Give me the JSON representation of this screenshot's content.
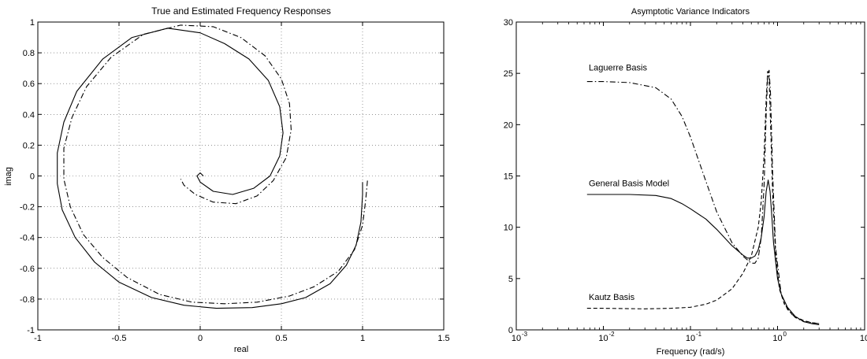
{
  "chart_data": [
    {
      "type": "line",
      "title": "True and Estimated Frequency Responses",
      "xlabel": "real",
      "ylabel": "imag",
      "xlim": [
        -1,
        1.5
      ],
      "ylim": [
        -1,
        1
      ],
      "xticks": [
        -1,
        -0.5,
        0,
        0.5,
        1,
        1.5
      ],
      "xtick_labels": [
        "-1",
        "-0.5",
        "0",
        "0.5",
        "1",
        "1.5"
      ],
      "yticks": [
        -1,
        -0.8,
        -0.6,
        -0.4,
        -0.2,
        0,
        0.2,
        0.4,
        0.6,
        0.8,
        1
      ],
      "ytick_labels": [
        "-1",
        "-0.8",
        "-0.6",
        "-0.4",
        "-0.2",
        "0",
        "0.2",
        "0.4",
        "0.6",
        "0.8",
        "1"
      ],
      "grid": true,
      "series": [
        {
          "style": "solid",
          "points": [
            [
              1.0,
              -0.04
            ],
            [
              1.0,
              -0.12
            ],
            [
              0.99,
              -0.3
            ],
            [
              0.96,
              -0.45
            ],
            [
              0.9,
              -0.58
            ],
            [
              0.8,
              -0.7
            ],
            [
              0.65,
              -0.79
            ],
            [
              0.5,
              -0.83
            ],
            [
              0.32,
              -0.855
            ],
            [
              0.1,
              -0.86
            ],
            [
              -0.1,
              -0.84
            ],
            [
              -0.3,
              -0.79
            ],
            [
              -0.5,
              -0.69
            ],
            [
              -0.65,
              -0.56
            ],
            [
              -0.77,
              -0.4
            ],
            [
              -0.85,
              -0.22
            ],
            [
              -0.88,
              -0.05
            ],
            [
              -0.88,
              0.15
            ],
            [
              -0.84,
              0.35
            ],
            [
              -0.76,
              0.55
            ],
            [
              -0.6,
              0.76
            ],
            [
              -0.42,
              0.9
            ],
            [
              -0.2,
              0.96
            ],
            [
              0.0,
              0.93
            ],
            [
              0.15,
              0.86
            ],
            [
              0.3,
              0.76
            ],
            [
              0.42,
              0.62
            ],
            [
              0.49,
              0.45
            ],
            [
              0.51,
              0.28
            ],
            [
              0.49,
              0.13
            ],
            [
              0.43,
              0.0
            ],
            [
              0.33,
              -0.08
            ],
            [
              0.2,
              -0.12
            ],
            [
              0.08,
              -0.1
            ],
            [
              0.0,
              -0.04
            ],
            [
              -0.02,
              0.0
            ],
            [
              0.0,
              0.02
            ],
            [
              0.02,
              0.0
            ]
          ]
        },
        {
          "style": "dashdot",
          "points": [
            [
              1.03,
              -0.03
            ],
            [
              1.02,
              -0.15
            ],
            [
              1.0,
              -0.32
            ],
            [
              0.95,
              -0.48
            ],
            [
              0.85,
              -0.62
            ],
            [
              0.7,
              -0.72
            ],
            [
              0.55,
              -0.78
            ],
            [
              0.35,
              -0.82
            ],
            [
              0.15,
              -0.83
            ],
            [
              -0.05,
              -0.82
            ],
            [
              -0.25,
              -0.77
            ],
            [
              -0.45,
              -0.66
            ],
            [
              -0.6,
              -0.53
            ],
            [
              -0.72,
              -0.38
            ],
            [
              -0.8,
              -0.2
            ],
            [
              -0.84,
              -0.02
            ],
            [
              -0.84,
              0.18
            ],
            [
              -0.79,
              0.38
            ],
            [
              -0.7,
              0.58
            ],
            [
              -0.55,
              0.77
            ],
            [
              -0.35,
              0.92
            ],
            [
              -0.12,
              0.98
            ],
            [
              0.08,
              0.97
            ],
            [
              0.25,
              0.9
            ],
            [
              0.4,
              0.78
            ],
            [
              0.5,
              0.63
            ],
            [
              0.55,
              0.47
            ],
            [
              0.56,
              0.3
            ],
            [
              0.53,
              0.12
            ],
            [
              0.45,
              -0.03
            ],
            [
              0.35,
              -0.13
            ],
            [
              0.22,
              -0.18
            ],
            [
              0.08,
              -0.17
            ],
            [
              -0.03,
              -0.12
            ],
            [
              -0.1,
              -0.06
            ],
            [
              -0.12,
              -0.02
            ]
          ]
        }
      ]
    },
    {
      "type": "line",
      "title": "Asymptotic Variance Indicators",
      "xlabel": "Frequency (rad/s)",
      "ylabel": "",
      "xscale": "log",
      "xlim": [
        0.001,
        10
      ],
      "ylim": [
        0,
        30
      ],
      "xticks": [
        0.001,
        0.01,
        0.1,
        1,
        10
      ],
      "xtick_labels": [
        "10",
        "10",
        "10",
        "10",
        "10"
      ],
      "xtick_exponents": [
        "-3",
        "-2",
        "-1",
        "0",
        "1"
      ],
      "yticks": [
        0,
        5,
        10,
        15,
        20,
        25,
        30
      ],
      "ytick_labels": [
        "0",
        "5",
        "10",
        "15",
        "20",
        "25",
        "30"
      ],
      "grid": false,
      "annotations": [
        {
          "text": "Laguerre Basis",
          "x": 0.0068,
          "y": 25.3
        },
        {
          "text": "General Basis Model",
          "x": 0.0068,
          "y": 14.0
        },
        {
          "text": "Kautz Basis",
          "x": 0.0068,
          "y": 2.9
        }
      ],
      "series": [
        {
          "name": "Laguerre Basis",
          "style": "dashdot",
          "points": [
            [
              0.0065,
              24.2
            ],
            [
              0.01,
              24.2
            ],
            [
              0.02,
              24.1
            ],
            [
              0.04,
              23.6
            ],
            [
              0.06,
              22.5
            ],
            [
              0.08,
              20.8
            ],
            [
              0.1,
              18.8
            ],
            [
              0.15,
              14.5
            ],
            [
              0.2,
              11.5
            ],
            [
              0.3,
              8.5
            ],
            [
              0.4,
              7.2
            ],
            [
              0.5,
              6.5
            ],
            [
              0.55,
              6.5
            ],
            [
              0.6,
              7.0
            ],
            [
              0.65,
              9.0
            ],
            [
              0.7,
              14.0
            ],
            [
              0.74,
              21.0
            ],
            [
              0.77,
              24.8
            ],
            [
              0.8,
              25.3
            ],
            [
              0.83,
              23.0
            ],
            [
              0.88,
              15.0
            ],
            [
              0.95,
              8.0
            ],
            [
              1.1,
              3.5
            ],
            [
              1.3,
              2.0
            ],
            [
              1.6,
              1.2
            ],
            [
              2.0,
              0.8
            ],
            [
              2.5,
              0.7
            ],
            [
              3.0,
              0.6
            ]
          ]
        },
        {
          "name": "General Basis Model",
          "style": "solid",
          "points": [
            [
              0.0065,
              13.2
            ],
            [
              0.01,
              13.2
            ],
            [
              0.02,
              13.2
            ],
            [
              0.04,
              13.1
            ],
            [
              0.06,
              12.8
            ],
            [
              0.08,
              12.3
            ],
            [
              0.1,
              11.8
            ],
            [
              0.15,
              10.8
            ],
            [
              0.2,
              9.8
            ],
            [
              0.3,
              8.2
            ],
            [
              0.4,
              7.3
            ],
            [
              0.45,
              7.0
            ],
            [
              0.5,
              7.0
            ],
            [
              0.55,
              7.2
            ],
            [
              0.6,
              7.8
            ],
            [
              0.65,
              9.0
            ],
            [
              0.7,
              11.0
            ],
            [
              0.74,
              13.5
            ],
            [
              0.78,
              14.6
            ],
            [
              0.82,
              13.5
            ],
            [
              0.86,
              11.0
            ],
            [
              0.9,
              8.5
            ],
            [
              1.0,
              5.0
            ],
            [
              1.1,
              3.5
            ],
            [
              1.3,
              2.2
            ],
            [
              1.6,
              1.3
            ],
            [
              2.0,
              0.8
            ],
            [
              2.5,
              0.6
            ],
            [
              3.0,
              0.5
            ]
          ]
        },
        {
          "name": "Kautz Basis",
          "style": "dashed",
          "points": [
            [
              0.0065,
              2.1
            ],
            [
              0.01,
              2.1
            ],
            [
              0.03,
              2.05
            ],
            [
              0.06,
              2.1
            ],
            [
              0.1,
              2.2
            ],
            [
              0.15,
              2.5
            ],
            [
              0.2,
              2.9
            ],
            [
              0.3,
              4.0
            ],
            [
              0.4,
              5.5
            ],
            [
              0.5,
              7.2
            ],
            [
              0.6,
              10.0
            ],
            [
              0.65,
              12.5
            ],
            [
              0.7,
              17.0
            ],
            [
              0.74,
              22.5
            ],
            [
              0.77,
              25.2
            ],
            [
              0.8,
              24.5
            ],
            [
              0.84,
              19.0
            ],
            [
              0.88,
              13.0
            ],
            [
              0.95,
              7.5
            ],
            [
              1.05,
              4.0
            ],
            [
              1.2,
              2.5
            ],
            [
              1.5,
              1.4
            ],
            [
              2.0,
              0.9
            ],
            [
              2.5,
              0.7
            ],
            [
              3.0,
              0.6
            ]
          ]
        }
      ]
    }
  ]
}
